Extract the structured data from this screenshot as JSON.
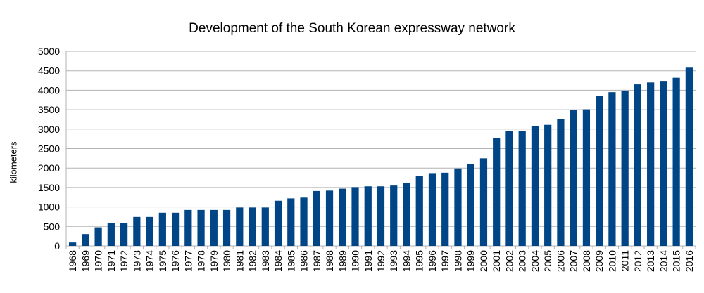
{
  "chart_data": {
    "type": "bar",
    "title": "Development of the South Korean expressway network",
    "xlabel": "",
    "ylabel": "kilometers",
    "ylim": [
      0,
      5000
    ],
    "yticks": [
      0,
      500,
      1000,
      1500,
      2000,
      2500,
      3000,
      3500,
      4000,
      4500,
      5000
    ],
    "grid": true,
    "legend": "none",
    "bar_color": "#004586",
    "categories": [
      "1968",
      "1969",
      "1970",
      "1971",
      "1972",
      "1973",
      "1974",
      "1975",
      "1976",
      "1977",
      "1978",
      "1979",
      "1980",
      "1981",
      "1982",
      "1983",
      "1984",
      "1985",
      "1986",
      "1987",
      "1988",
      "1989",
      "1990",
      "1991",
      "1992",
      "1993",
      "1994",
      "1995",
      "1996",
      "1997",
      "1998",
      "1999",
      "2000",
      "2001",
      "2002",
      "2003",
      "2004",
      "2005",
      "2006",
      "2007",
      "2008",
      "2009",
      "2010",
      "2011",
      "2012",
      "2013",
      "2014",
      "2015",
      "2016"
    ],
    "values": [
      87,
      304,
      477,
      583,
      583,
      743,
      743,
      852,
      852,
      923,
      923,
      923,
      923,
      986,
      986,
      986,
      1160,
      1220,
      1240,
      1410,
      1420,
      1470,
      1510,
      1530,
      1530,
      1550,
      1610,
      1800,
      1870,
      1880,
      1990,
      2110,
      2250,
      2780,
      2950,
      2950,
      3080,
      3110,
      3260,
      3490,
      3510,
      3860,
      3950,
      3990,
      4150,
      4200,
      4240,
      4320,
      4580
    ]
  }
}
